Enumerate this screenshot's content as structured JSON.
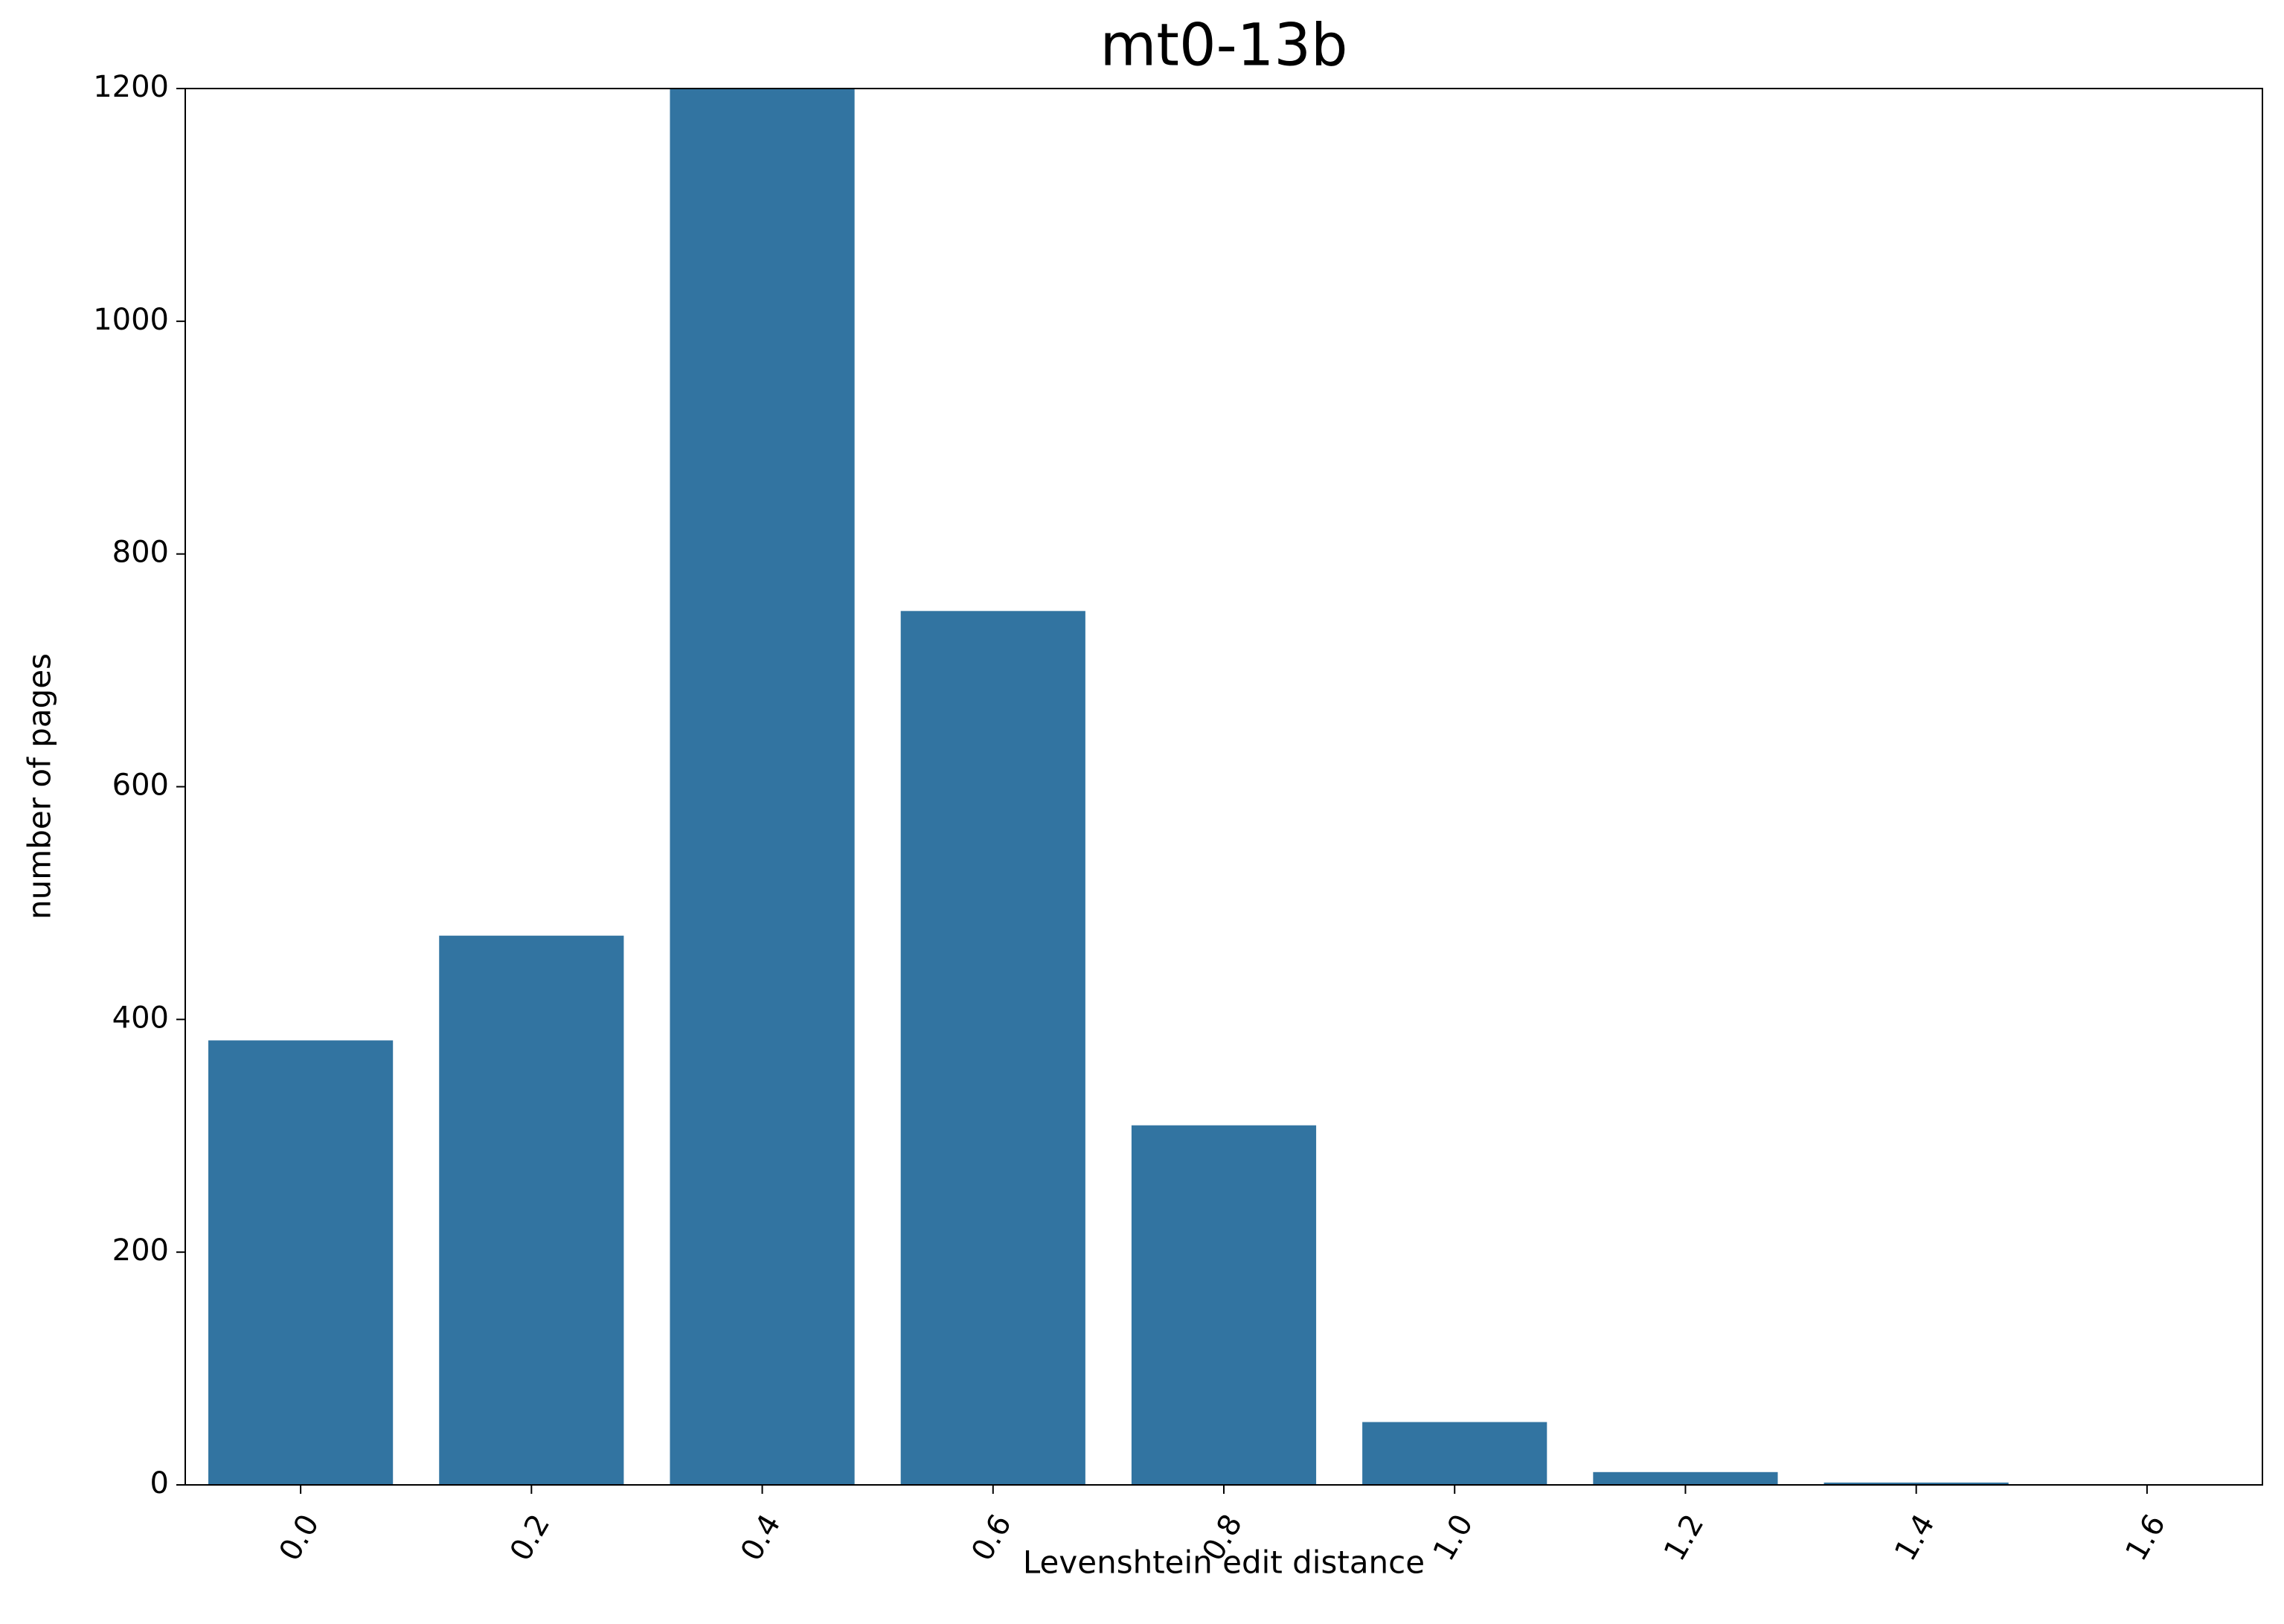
{
  "chart_data": {
    "type": "bar",
    "title": "mt0-13b",
    "x_label": "Levenshtein edit distance",
    "y_label": "number of pages",
    "categories": [
      "0.0",
      "0.2",
      "0.4",
      "0.6",
      "0.8",
      "1.0",
      "1.2",
      "1.4",
      "1.6"
    ],
    "values": [
      382,
      472,
      1200,
      751,
      309,
      54,
      11,
      2,
      0
    ],
    "color": "#3274a1",
    "ylim": [
      0,
      1200
    ],
    "yticks": [
      0,
      200,
      400,
      600,
      800,
      1000,
      1200
    ],
    "grid": false
  }
}
